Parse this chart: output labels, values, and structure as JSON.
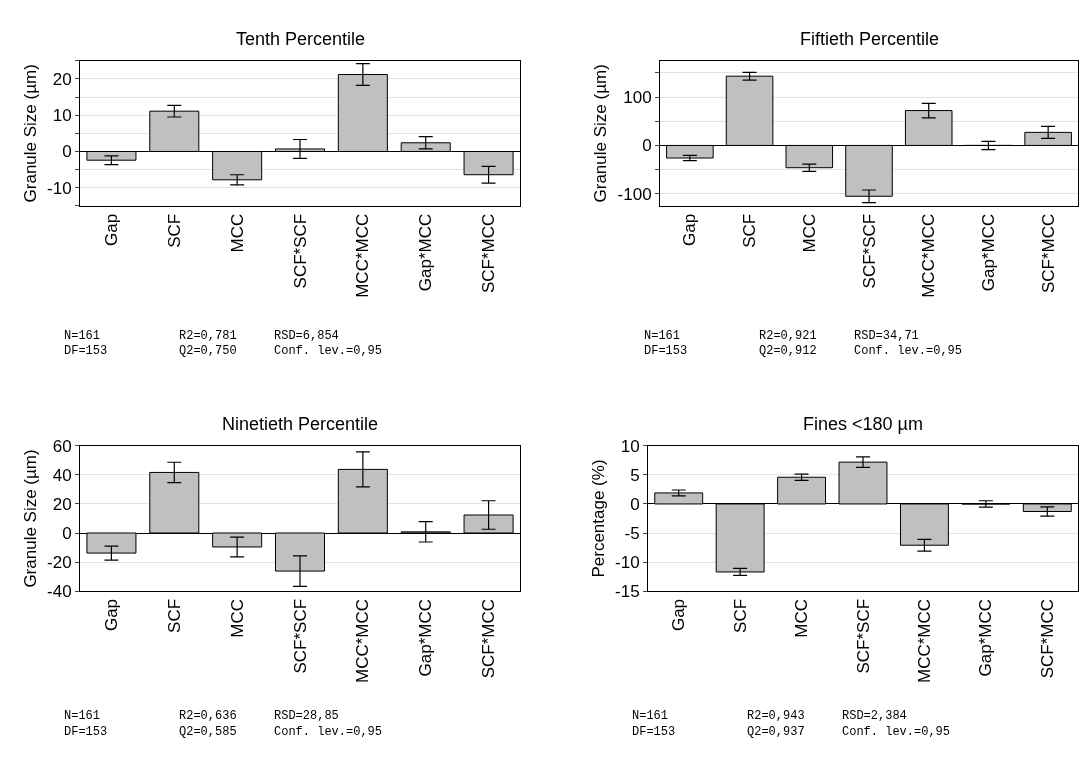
{
  "chart_data": [
    {
      "type": "bar",
      "title": "Tenth Percentile",
      "ylabel": "Granule Size (µm)",
      "categories": [
        "Gap",
        "SCF",
        "MCC",
        "SCF*SCF",
        "MCC*MCC",
        "Gap*MCC",
        "SCF*MCC"
      ],
      "series": [
        {
          "color": "#c0c0c0",
          "values": [
            -2.4,
            11.1,
            -7.8,
            0.7,
            21.2,
            2.4,
            -6.4
          ],
          "errors": [
            1.2,
            1.6,
            1.4,
            2.6,
            3.0,
            1.7,
            2.3
          ]
        }
      ],
      "ylim": [
        -15,
        25
      ],
      "yticks": [
        {
          "value": -15,
          "label": null
        },
        -10,
        {
          "value": -5,
          "label": null
        },
        0,
        {
          "value": 5,
          "label": null
        },
        10,
        {
          "value": 15,
          "label": null
        },
        20,
        {
          "value": 25,
          "label": null
        }
      ],
      "grid": "y",
      "annotations": [
        "N=161",
        "DF=153",
        "R2=0,781",
        "Q2=0,750",
        "RSD=6,854",
        "Conf. lev.=0,95"
      ]
    },
    {
      "type": "bar",
      "title": "Fiftieth Percentile",
      "ylabel": "Granule Size (µm)",
      "categories": [
        "Gap",
        "SCF",
        "MCC",
        "SCF*SCF",
        "MCC*MCC",
        "Gap*MCC",
        "SCF*MCC"
      ],
      "series": [
        {
          "color": "#c0c0c0",
          "values": [
            -26,
            143,
            -46,
            -105,
            72,
            0,
            27
          ],
          "errors": [
            5.5,
            8,
            7.5,
            13,
            15,
            8.5,
            12.5
          ]
        }
      ],
      "ylim": [
        -125,
        175
      ],
      "yticks": [
        -100,
        {
          "value": -50,
          "label": null
        },
        0,
        {
          "value": 50,
          "label": null
        },
        100,
        {
          "value": 150,
          "label": null
        }
      ],
      "grid": "y",
      "annotations": [
        "N=161",
        "DF=153",
        "R2=0,921",
        "Q2=0,912",
        "RSD=34,71",
        "Conf. lev.=0,95"
      ]
    },
    {
      "type": "bar",
      "title": "Ninetieth Percentile",
      "ylabel": "Granule Size (µm)",
      "categories": [
        "Gap",
        "SCF",
        "MCC",
        "SCF*SCF",
        "MCC*MCC",
        "Gap*MCC",
        "SCF*MCC"
      ],
      "series": [
        {
          "color": "#c0c0c0",
          "values": [
            -13.8,
            41.7,
            -9.6,
            -26.2,
            43.8,
            0.8,
            12.4
          ],
          "errors": [
            4.8,
            7,
            6.8,
            10.5,
            12,
            7,
            9.8
          ]
        }
      ],
      "ylim": [
        -40,
        60
      ],
      "yticks": [
        -40,
        -20,
        0,
        20,
        40,
        60
      ],
      "grid": "y",
      "annotations": [
        "N=161",
        "DF=153",
        "R2=0,636",
        "Q2=0,585",
        "RSD=28,85",
        "Conf. lev.=0,95"
      ]
    },
    {
      "type": "bar",
      "title": "Fines <180 µm",
      "ylabel": "Percentage (%)",
      "categories": [
        "Gap",
        "SCF",
        "MCC",
        "SCF*SCF",
        "MCC*MCC",
        "Gap*MCC",
        "SCF*MCC"
      ],
      "series": [
        {
          "color": "#c0c0c0",
          "values": [
            1.9,
            -11.7,
            4.6,
            7.2,
            -7.1,
            0,
            -1.3
          ],
          "errors": [
            0.5,
            0.6,
            0.55,
            0.9,
            1.0,
            0.55,
            0.8
          ]
        }
      ],
      "ylim": [
        -15,
        10
      ],
      "yticks": [
        -15,
        -10,
        -5,
        0,
        5,
        10
      ],
      "grid": "y",
      "annotations": [
        "N=161",
        "DF=153",
        "R2=0,943",
        "Q2=0,937",
        "RSD=2,384",
        "Conf. lev.=0,95"
      ]
    }
  ]
}
